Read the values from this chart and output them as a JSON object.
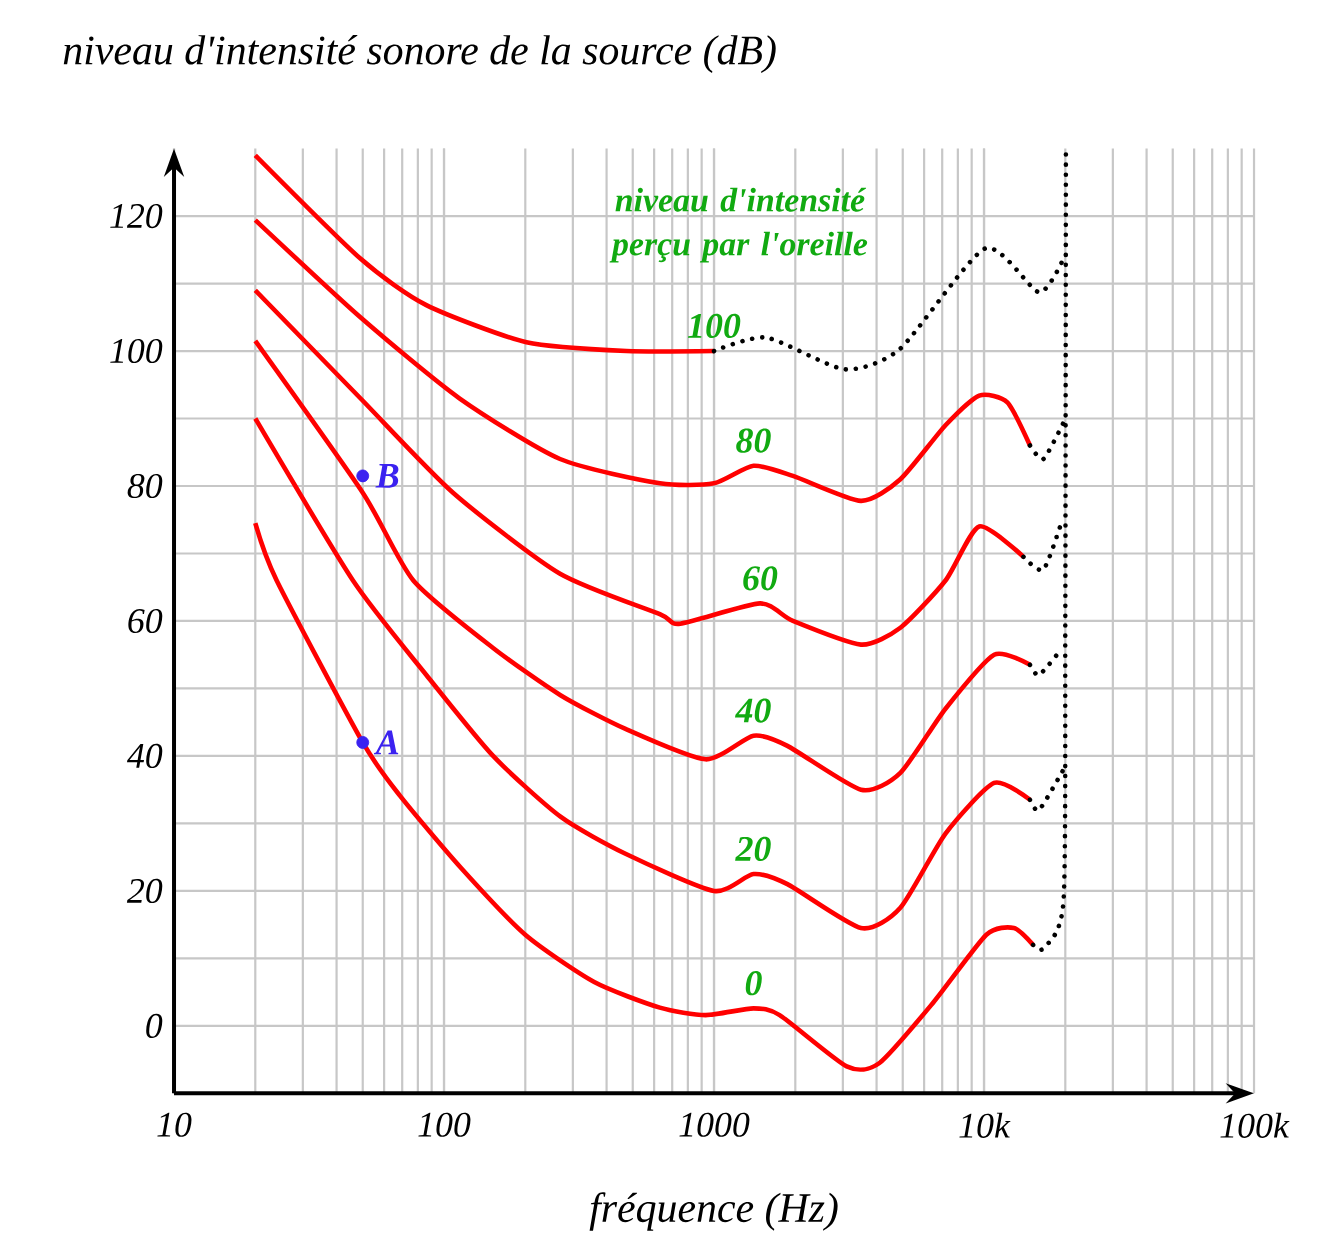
{
  "chart_data": {
    "type": "line",
    "xlabel": "fréquence (Hz)",
    "ylabel": "niveau d'intensité sonore de la source (dB)",
    "legend_title": "niveau d'intensité perçu par l'oreille",
    "log": "x",
    "grid": true,
    "line_style": "solid",
    "xlim": [
      10,
      100000
    ],
    "ylim": [
      -10,
      130
    ],
    "xticks": [
      10,
      100,
      1000,
      {
        "value": 10000,
        "label": "10k"
      },
      {
        "value": 100000,
        "label": "100k"
      }
    ],
    "yticks": [
      0,
      20,
      40,
      60,
      80,
      100,
      120
    ],
    "series": [
      {
        "name": "0",
        "color": "#ff0000",
        "x": [
          20,
          24,
          50,
          69,
          115,
          200,
          360,
          630,
          930,
          1400,
          1750,
          3100,
          4100,
          6500,
          10200,
          12900,
          15200
        ],
        "values": [
          74.5,
          66,
          42,
          34,
          23.5,
          13.5,
          6.5,
          2.7,
          1.6,
          2.6,
          1.6,
          -6,
          -5.5,
          3.5,
          13.5,
          14.5,
          12
        ]
      },
      {
        "name": "20",
        "color": "#ff0000",
        "x": [
          20,
          46,
          86,
          152,
          270,
          470,
          1000,
          1400,
          1870,
          3500,
          4900,
          7200,
          10900,
          14800
        ],
        "values": [
          90,
          66,
          52,
          40,
          31,
          25.5,
          20,
          22.5,
          21,
          14.5,
          17.5,
          28.5,
          36,
          33.5
        ]
      },
      {
        "name": "40",
        "color": "#ff0000",
        "x": [
          20,
          50,
          77,
          152,
          270,
          470,
          930,
          1400,
          1870,
          3500,
          4900,
          7200,
          10900,
          14800
        ],
        "values": [
          101.5,
          79,
          66,
          56,
          49,
          44,
          39.5,
          43,
          41.5,
          35,
          37.5,
          47,
          55,
          53.5
        ]
      },
      {
        "name": "60",
        "color": "#ff0000",
        "x": [
          20,
          49,
          108,
          269,
          630,
          750,
          1480,
          1960,
          3500,
          4900,
          7200,
          9600,
          14000
        ],
        "values": [
          109,
          93,
          79,
          67,
          61,
          59.6,
          62.6,
          60,
          56.5,
          59,
          66,
          74,
          69.5
        ]
      },
      {
        "name": "80",
        "color": "#ff0000",
        "x": [
          20,
          49,
          114,
          269,
          630,
          1000,
          1400,
          1960,
          3500,
          4900,
          7200,
          9600,
          12200,
          14800
        ],
        "values": [
          119.4,
          105,
          93,
          84,
          80.4,
          80.4,
          83,
          81.5,
          77.8,
          81,
          89,
          93.4,
          92.4,
          86
        ]
      },
      {
        "name": "100",
        "color": "#ff0000",
        "x": [
          20,
          49,
          86,
          202,
          474,
          1000
        ],
        "values": [
          129,
          113.7,
          106.8,
          101.3,
          100,
          100
        ]
      },
      {
        "color": "#000000",
        "line_style": "dotted",
        "x": [
          15200,
          16600,
          19700,
          20000,
          20100,
          null,
          14800,
          16000,
          19700,
          null,
          14800,
          16000,
          19500,
          null,
          14000,
          16600,
          19500,
          null,
          14800,
          16600,
          19700,
          null,
          1000,
          1560,
          3040,
          4880,
          10100,
          16000,
          19700
        ],
        "values": [
          12,
          11.5,
          18.5,
          60,
          130,
          null,
          33.5,
          32,
          38,
          null,
          53.5,
          52,
          56,
          null,
          69.5,
          67.6,
          75,
          null,
          86,
          84,
          89.4,
          null,
          100,
          102,
          97.3,
          100.3,
          115.2,
          108.7,
          113.7
        ]
      },
      {
        "name": "A",
        "type": "scatter",
        "color": "#3b22f0",
        "x": [
          50
        ],
        "values": [
          42
        ]
      },
      {
        "name": "B",
        "type": "scatter",
        "color": "#3b22f0",
        "x": [
          50
        ],
        "values": [
          81.5
        ]
      }
    ]
  }
}
